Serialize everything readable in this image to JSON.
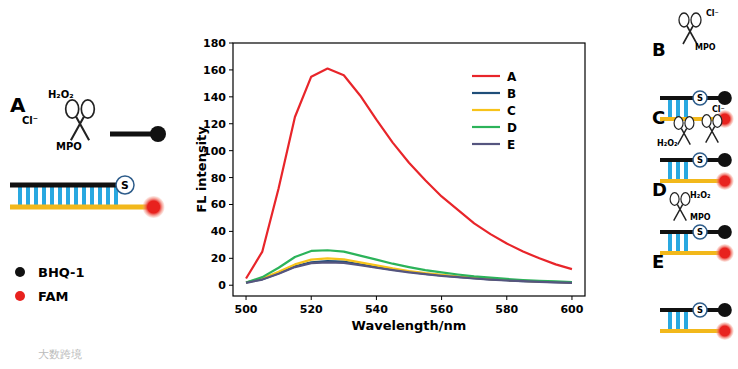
{
  "chart_data": {
    "type": "line",
    "x_label": "Wavelength/nm",
    "y_label": "FL intensity",
    "x": [
      500,
      505,
      510,
      515,
      520,
      525,
      530,
      535,
      540,
      545,
      550,
      555,
      560,
      565,
      570,
      575,
      580,
      585,
      590,
      595,
      600
    ],
    "series": [
      {
        "name": "A",
        "color": "#e8252a",
        "values": [
          5,
          25,
          72,
          125,
          155,
          161,
          156,
          141,
          123,
          106,
          91,
          78,
          66,
          56,
          46,
          38,
          31,
          25,
          20,
          15.5,
          12
        ]
      },
      {
        "name": "B",
        "color": "#1f4e79",
        "values": [
          2,
          4.5,
          9,
          14,
          17,
          18,
          17.5,
          15.5,
          13.5,
          11.5,
          10,
          8.5,
          7.3,
          6.2,
          5.2,
          4.4,
          3.7,
          3.1,
          2.6,
          2.2,
          1.9
        ]
      },
      {
        "name": "C",
        "color": "#f7c31a",
        "values": [
          2,
          5,
          10,
          15.5,
          19,
          20,
          19.2,
          17,
          14.7,
          12.5,
          10.6,
          9,
          7.7,
          6.5,
          5.4,
          4.6,
          3.9,
          3.3,
          2.8,
          2.4,
          2.1
        ]
      },
      {
        "name": "D",
        "color": "#2cb35a",
        "values": [
          2,
          6,
          13,
          21,
          25.5,
          26,
          25,
          22,
          19,
          16,
          13.5,
          11.2,
          9.5,
          8,
          6.6,
          5.6,
          4.7,
          3.9,
          3.3,
          2.8,
          2.4
        ]
      },
      {
        "name": "E",
        "color": "#55557f",
        "values": [
          1.8,
          4.2,
          8.6,
          13.5,
          16.4,
          17,
          16.6,
          15,
          13,
          11.2,
          9.6,
          8.2,
          7,
          6,
          5,
          4.2,
          3.5,
          3,
          2.5,
          2.1,
          1.8
        ]
      }
    ],
    "xlim": [
      496,
      604
    ],
    "ylim": [
      -8,
      180
    ],
    "xticks": [
      500,
      520,
      540,
      560,
      580,
      600
    ],
    "yticks": [
      0,
      20,
      40,
      60,
      80,
      100,
      120,
      140,
      160,
      180
    ],
    "grid": false,
    "legend": "upper right"
  },
  "diagram": {
    "panels": [
      {
        "label": "A",
        "texts": [
          "H₂O₂",
          "Cl⁻",
          "MPO"
        ],
        "linker": "S"
      },
      {
        "label": "B",
        "texts": [
          "Cl⁻",
          "MPO"
        ],
        "linker": "S"
      },
      {
        "label": "C",
        "texts": [
          "H₂O₂",
          "Cl⁻"
        ],
        "linker": "S"
      },
      {
        "label": "D",
        "texts": [
          "H₂O₂",
          "MPO"
        ],
        "linker": "S"
      },
      {
        "label": "E",
        "texts": [],
        "linker": "S"
      }
    ],
    "key": [
      {
        "label": "BHQ-1",
        "color": "#111111"
      },
      {
        "label": "FAM",
        "color": "#e8221e"
      }
    ],
    "watermark": "大数跨境"
  }
}
